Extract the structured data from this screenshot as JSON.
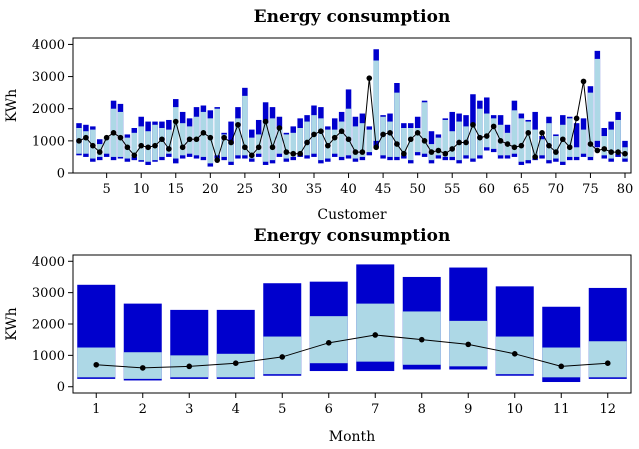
{
  "chart_data": [
    {
      "type": "bar",
      "title": "Energy consumption",
      "xlabel": "Customer",
      "ylabel": "KWh",
      "ylim": [
        0,
        4200
      ],
      "yticks": [
        0,
        1000,
        2000,
        3000,
        4000
      ],
      "xticks": [
        5,
        10,
        15,
        20,
        25,
        30,
        35,
        40,
        45,
        50,
        55,
        60,
        65,
        70,
        75,
        80
      ],
      "colors": {
        "outer_range": "#0000cd",
        "inner_range": "#add8e6",
        "mean": "#000000"
      },
      "series": [
        {
          "name": "min",
          "values": [
            550,
            500,
            350,
            400,
            500,
            400,
            450,
            350,
            400,
            350,
            250,
            350,
            400,
            500,
            300,
            450,
            500,
            450,
            400,
            200,
            450,
            400,
            250,
            450,
            450,
            350,
            500,
            250,
            300,
            500,
            350,
            400,
            500,
            450,
            500,
            300,
            350,
            500,
            400,
            450,
            350,
            400,
            550,
            800,
            450,
            400,
            400,
            450,
            300,
            550,
            500,
            300,
            450,
            400,
            400,
            300,
            450,
            350,
            450,
            700,
            650,
            450,
            450,
            500,
            250,
            300,
            400,
            450,
            300,
            350,
            250,
            400,
            400,
            500,
            400,
            800,
            450,
            350,
            500,
            350
          ]
        },
        {
          "name": "q1",
          "values": [
            600,
            600,
            450,
            500,
            600,
            500,
            500,
            450,
            500,
            400,
            350,
            400,
            500,
            600,
            450,
            550,
            600,
            550,
            500,
            300,
            550,
            500,
            350,
            550,
            550,
            450,
            600,
            350,
            400,
            600,
            450,
            500,
            600,
            550,
            600,
            400,
            450,
            600,
            500,
            550,
            450,
            500,
            650,
            1000,
            550,
            500,
            500,
            550,
            400,
            650,
            600,
            400,
            550,
            500,
            500,
            400,
            550,
            450,
            550,
            800,
            750,
            550,
            550,
            600,
            350,
            400,
            500,
            550,
            400,
            450,
            350,
            500,
            500,
            600,
            500,
            1000,
            550,
            450,
            600,
            450
          ]
        },
        {
          "name": "q3",
          "values": [
            1400,
            1300,
            1350,
            900,
            1100,
            2000,
            1900,
            1100,
            1250,
            1450,
            1300,
            1500,
            1400,
            1350,
            2050,
            1550,
            1450,
            1750,
            1900,
            1700,
            2000,
            1200,
            900,
            1700,
            2400,
            1100,
            1200,
            1550,
            1700,
            1400,
            1200,
            1250,
            1400,
            1600,
            1800,
            1700,
            1350,
            1350,
            1600,
            2000,
            1450,
            1550,
            1350,
            3500,
            1750,
            1600,
            2500,
            1400,
            1400,
            1400,
            2200,
            900,
            1100,
            1650,
            1300,
            1600,
            1450,
            1500,
            2000,
            1850,
            1700,
            1500,
            1250,
            1950,
            1700,
            1600,
            1350,
            1050,
            1550,
            1150,
            1500,
            1700,
            800,
            1350,
            2500,
            3550,
            1150,
            1350,
            1650,
            800
          ]
        },
        {
          "name": "max",
          "values": [
            1550,
            1500,
            1450,
            1050,
            1100,
            2250,
            2150,
            1200,
            1400,
            1750,
            1600,
            1600,
            1600,
            1650,
            2300,
            1900,
            1700,
            2050,
            2100,
            1950,
            2050,
            1250,
            1600,
            2050,
            2650,
            1350,
            1650,
            2200,
            2050,
            1750,
            1250,
            1450,
            1700,
            1800,
            2100,
            2050,
            1450,
            1700,
            1900,
            2600,
            1750,
            1850,
            1450,
            3850,
            1800,
            1850,
            2800,
            1550,
            1550,
            1750,
            2250,
            1300,
            1200,
            1700,
            1900,
            1850,
            1800,
            2450,
            2250,
            2350,
            1800,
            1800,
            1500,
            2250,
            1850,
            1650,
            1900,
            1150,
            1750,
            1200,
            1800,
            1750,
            1550,
            1700,
            2700,
            3800,
            1400,
            1600,
            1900,
            1000
          ]
        },
        {
          "name": "mean",
          "values": [
            1000,
            1100,
            850,
            650,
            1100,
            1250,
            1100,
            800,
            550,
            850,
            800,
            850,
            1050,
            750,
            1600,
            800,
            1050,
            1050,
            1250,
            1100,
            400,
            1100,
            950,
            1500,
            800,
            550,
            800,
            1600,
            800,
            1400,
            650,
            600,
            600,
            950,
            1200,
            1300,
            850,
            1100,
            1300,
            1050,
            650,
            650,
            2950,
            800,
            1200,
            1250,
            900,
            600,
            1050,
            1250,
            1000,
            650,
            700,
            600,
            750,
            950,
            950,
            1500,
            1100,
            1150,
            1450,
            1000,
            900,
            800,
            850,
            1250,
            500,
            1250,
            850,
            650,
            1050,
            800,
            1700,
            2850,
            900,
            700,
            750,
            650,
            650,
            600
          ]
        }
      ]
    },
    {
      "type": "bar",
      "title": "Energy consumption",
      "xlabel": "Month",
      "ylabel": "KWh",
      "ylim": [
        -200,
        4200
      ],
      "yticks": [
        0,
        1000,
        2000,
        3000,
        4000
      ],
      "categories": [
        "1",
        "2",
        "3",
        "4",
        "5",
        "6",
        "7",
        "8",
        "9",
        "10",
        "11",
        "12"
      ],
      "series": [
        {
          "name": "min",
          "values": [
            250,
            200,
            250,
            250,
            350,
            500,
            500,
            550,
            550,
            350,
            150,
            250
          ]
        },
        {
          "name": "q1",
          "values": [
            300,
            250,
            300,
            300,
            400,
            750,
            800,
            700,
            650,
            400,
            300,
            300
          ]
        },
        {
          "name": "q3",
          "values": [
            1250,
            1100,
            1000,
            1050,
            1600,
            2250,
            2650,
            2400,
            2100,
            1600,
            1250,
            1450
          ]
        },
        {
          "name": "max",
          "values": [
            3250,
            2650,
            2450,
            2450,
            3300,
            3350,
            3900,
            3500,
            3800,
            3200,
            2550,
            3150
          ]
        },
        {
          "name": "mean",
          "values": [
            700,
            600,
            650,
            750,
            950,
            1400,
            1650,
            1500,
            1350,
            1050,
            650,
            750
          ]
        }
      ]
    }
  ]
}
